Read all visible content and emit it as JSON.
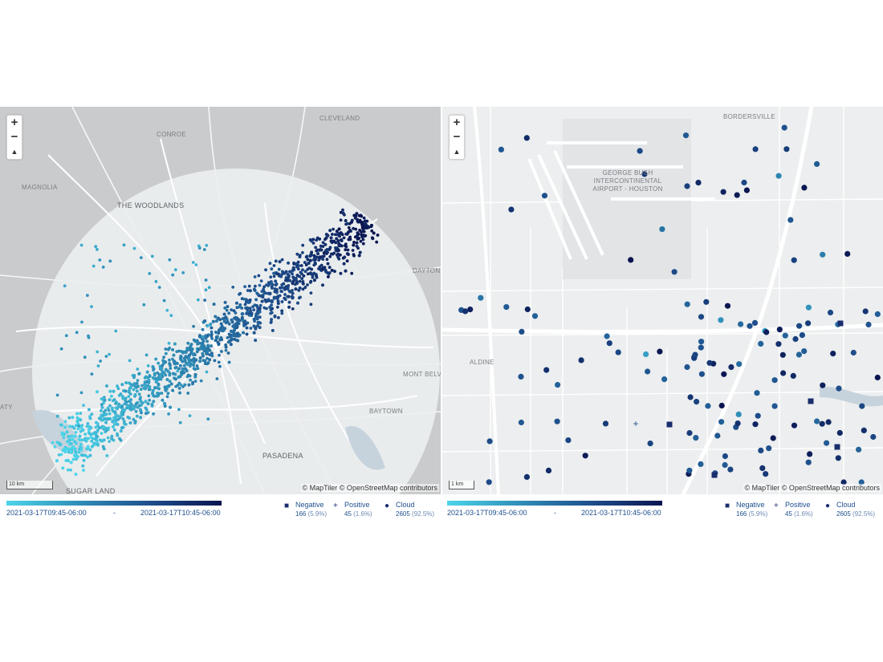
{
  "left_map": {
    "zoom_in": "+",
    "zoom_out": "−",
    "compass": "▲",
    "places": [
      "CONROE",
      "CLEVELAND",
      "MAGNOLIA",
      "THE WOODLANDS",
      "DAYTON",
      "MONT BELVIEU",
      "BAYTOWN",
      "PASADENA",
      "SUGAR LAND",
      "ATY"
    ],
    "scale_label": "10 km",
    "attribution": "© MapTiler © OpenStreetMap contributors"
  },
  "right_map": {
    "zoom_in": "+",
    "zoom_out": "−",
    "compass": "▲",
    "places": [
      "BORDERSVILLE",
      "ALDINE"
    ],
    "airport_label": [
      "GEORGE BUSH",
      "INTERCONTINENTAL",
      "AIRPORT - HOUSTON"
    ],
    "scale_label": "1 km",
    "attribution": "© MapTiler © OpenStreetMap contributors"
  },
  "legend": {
    "time_start": "2021-03-17T09:45-06:00",
    "time_sep": "-",
    "time_end": "2021-03-17T10:45-06:00",
    "gradient_colors": [
      "#4dd5ea",
      "#2f8fb8",
      "#1e4f8c",
      "#0a1450"
    ],
    "categories": [
      {
        "symbol": "■",
        "name": "Negative",
        "count": "166",
        "pct": "(5.9%)"
      },
      {
        "symbol": "+",
        "name": "Positive",
        "count": "45",
        "pct": "(1.6%)"
      },
      {
        "symbol": "●",
        "name": "Cloud",
        "count": "2605",
        "pct": "(92.5%)"
      }
    ]
  },
  "colors": {
    "early": "#4dd5ea",
    "late": "#0a1450",
    "map_outside": "#c9cbcd",
    "map_inside": "#eceeef"
  }
}
